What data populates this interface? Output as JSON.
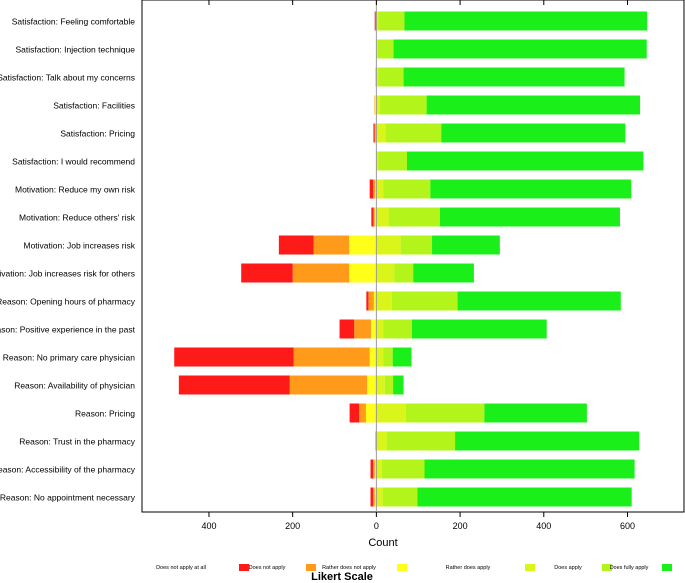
{
  "chart_data": {
    "type": "bar",
    "orientation": "horizontal",
    "stacking": "diverging",
    "xlabel": "Count",
    "ylabel": "",
    "xlim": [
      -560,
      735
    ],
    "xticks": [
      {
        "value": -400,
        "label": "400"
      },
      {
        "value": -200,
        "label": "200"
      },
      {
        "value": 0,
        "label": "0"
      },
      {
        "value": 200,
        "label": "200"
      },
      {
        "value": 400,
        "label": "400"
      },
      {
        "value": 600,
        "label": "600"
      }
    ],
    "legend": {
      "title": "Likert Scale",
      "position": "bottom",
      "entries": [
        {
          "label": "Does not apply at all",
          "color": "#ff1a1a"
        },
        {
          "label": "Does not apply",
          "color": "#ff9a1a"
        },
        {
          "label": "Rather does not apply",
          "color": "#ffff1a"
        },
        {
          "label": "Rather does apply",
          "color": "#d9f51a"
        },
        {
          "label": "Does apply",
          "color": "#b3f51a"
        },
        {
          "label": "Does fully apply",
          "color": "#1aef1a"
        }
      ]
    },
    "categories": [
      "Satisfaction: Feeling comfortable",
      "Satisfaction: Injection technique",
      "Satisfaction: Talk about my concerns",
      "Satisfaction: Facilities",
      "Satisfaction: Pricing",
      "Satisfaction: I would recommend",
      "Motivation: Reduce my own risk",
      "Motivation: Reduce others' risk",
      "Motivation: Job increases risk",
      "Motivation: Job increases risk for others",
      "Reason: Opening hours of pharmacy",
      "Reason: Positive experience in the past",
      "Reason: No primary care physician",
      "Reason: Availability of physician",
      "Reason: Pricing",
      "Reason: Trust in the pharmacy",
      "Reason: Accessibility of the pharmacy",
      "Reason: No appointment necessary"
    ],
    "series": [
      {
        "name": "Does not apply at all",
        "values": [
          2,
          0,
          0,
          0,
          3,
          0,
          8,
          5,
          83,
          123,
          5,
          35,
          285,
          265,
          23,
          0,
          6,
          6
        ]
      },
      {
        "name": "Does not apply",
        "values": [
          1,
          0,
          1,
          1,
          2,
          0,
          5,
          3,
          85,
          135,
          13,
          40,
          182,
          185,
          16,
          1,
          4,
          4
        ]
      },
      {
        "name": "Rather does not apply",
        "values": [
          1,
          1,
          1,
          4,
          2,
          1,
          3,
          4,
          65,
          65,
          6,
          13,
          16,
          22,
          25,
          2,
          4,
          4
        ]
      },
      {
        "name": "Rather does apply",
        "values": [
          5,
          3,
          5,
          8,
          22,
          5,
          17,
          30,
          58,
          43,
          37,
          17,
          17,
          20,
          70,
          25,
          13,
          15
        ]
      },
      {
        "name": "Does apply",
        "values": [
          62,
          38,
          60,
          112,
          133,
          68,
          112,
          122,
          75,
          45,
          157,
          68,
          22,
          20,
          188,
          163,
          102,
          83
        ]
      },
      {
        "name": "Does fully apply",
        "values": [
          580,
          605,
          528,
          510,
          440,
          565,
          480,
          430,
          162,
          145,
          390,
          322,
          45,
          25,
          245,
          440,
          502,
          512
        ]
      }
    ]
  }
}
